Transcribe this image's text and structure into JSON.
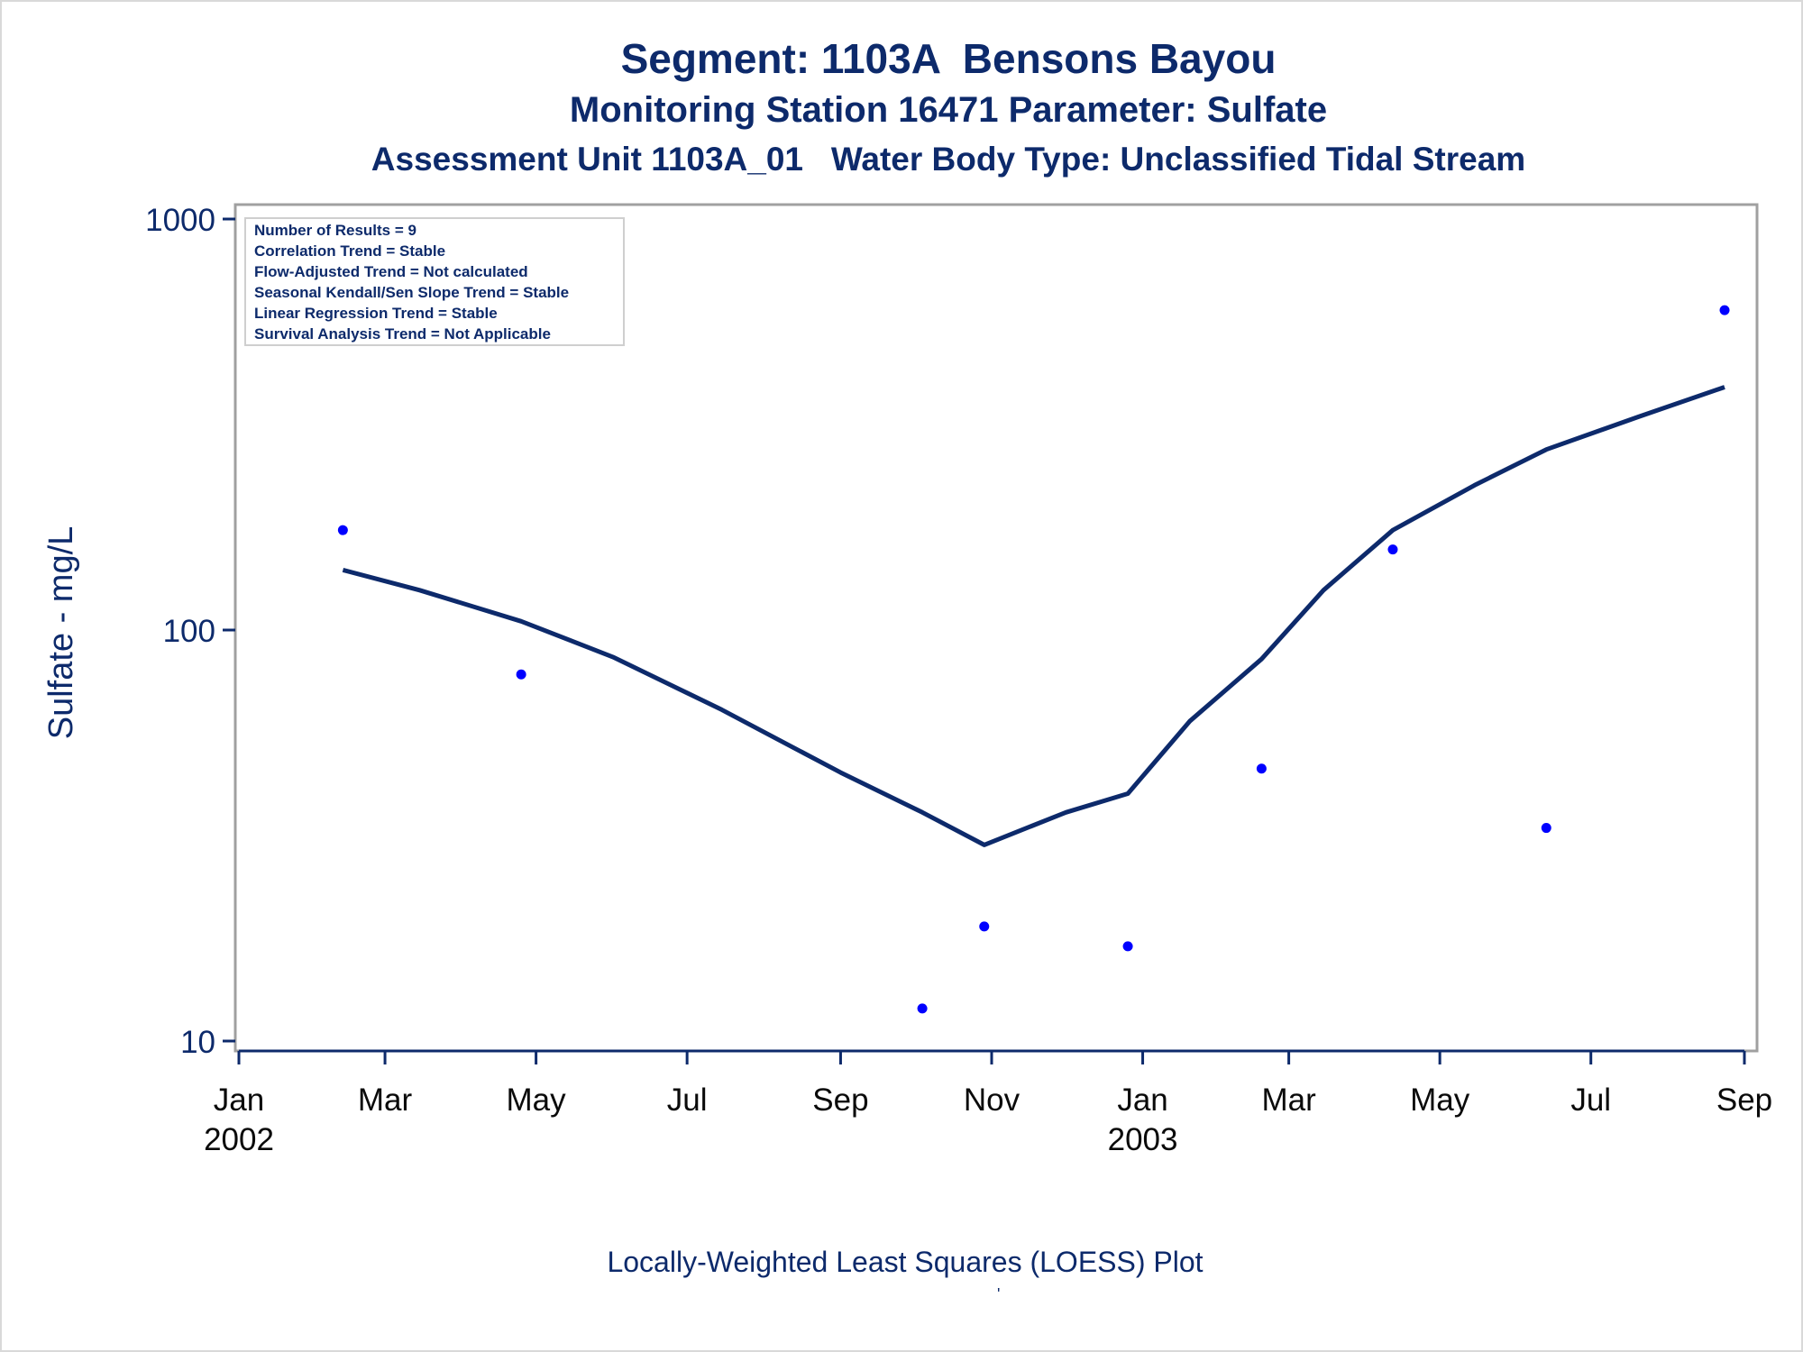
{
  "title_line1": "Segment: 1103A  Bensons Bayou",
  "title_line2": "Monitoring Station 16471 Parameter: Sulfate",
  "title_line3": "Assessment Unit 1103A_01   Water Body Type: Unclassified Tidal Stream",
  "stats_box": [
    "Number of Results = 9",
    "Correlation Trend = Stable",
    "Flow-Adjusted Trend = Not calculated",
    "Seasonal Kendall/Sen Slope Trend = Stable",
    "Linear Regression Trend = Stable",
    "Survival Analysis Trend = Not Applicable"
  ],
  "footnote": "Locally-Weighted Least Squares (LOESS) Plot",
  "footnote_mark": "'",
  "colors": {
    "text": "#0d2a6b",
    "points": "#0000ff",
    "loess_line": "#0d2a6b",
    "frame": "#a0a0a0"
  },
  "chart_data": {
    "type": "scatter",
    "ylabel": "Sulfate - mg/L",
    "yscale": "log",
    "ylim": [
      10,
      1000
    ],
    "yticks": [
      10,
      100,
      1000
    ],
    "xlim": [
      "2002-01-01",
      "2003-09-01"
    ],
    "xticks": [
      {
        "date": "2002-01-01",
        "label": "Jan",
        "year": "2002"
      },
      {
        "date": "2002-03-01",
        "label": "Mar",
        "year": ""
      },
      {
        "date": "2002-05-01",
        "label": "May",
        "year": ""
      },
      {
        "date": "2002-07-01",
        "label": "Jul",
        "year": ""
      },
      {
        "date": "2002-09-01",
        "label": "Sep",
        "year": ""
      },
      {
        "date": "2002-11-01",
        "label": "Nov",
        "year": ""
      },
      {
        "date": "2003-01-01",
        "label": "Jan",
        "year": "2003"
      },
      {
        "date": "2003-03-01",
        "label": "Mar",
        "year": ""
      },
      {
        "date": "2003-05-01",
        "label": "May",
        "year": ""
      },
      {
        "date": "2003-07-01",
        "label": "Jul",
        "year": ""
      },
      {
        "date": "2003-09-01",
        "label": "Sep",
        "year": ""
      }
    ],
    "points": [
      {
        "date": "2002-02-12",
        "value": 175
      },
      {
        "date": "2002-04-25",
        "value": 78
      },
      {
        "date": "2002-10-04",
        "value": 12
      },
      {
        "date": "2002-10-29",
        "value": 19
      },
      {
        "date": "2002-12-26",
        "value": 17
      },
      {
        "date": "2003-02-18",
        "value": 46
      },
      {
        "date": "2003-04-12",
        "value": 157
      },
      {
        "date": "2003-06-13",
        "value": 33
      },
      {
        "date": "2003-08-24",
        "value": 600
      }
    ],
    "loess": [
      {
        "date": "2002-02-12",
        "value": 140
      },
      {
        "date": "2002-03-15",
        "value": 125
      },
      {
        "date": "2002-04-25",
        "value": 105
      },
      {
        "date": "2002-06-01",
        "value": 86
      },
      {
        "date": "2002-07-15",
        "value": 64
      },
      {
        "date": "2002-09-01",
        "value": 45
      },
      {
        "date": "2002-10-04",
        "value": 36
      },
      {
        "date": "2002-10-29",
        "value": 30
      },
      {
        "date": "2002-12-01",
        "value": 36
      },
      {
        "date": "2002-12-26",
        "value": 40
      },
      {
        "date": "2003-01-20",
        "value": 60
      },
      {
        "date": "2003-02-18",
        "value": 85
      },
      {
        "date": "2003-03-15",
        "value": 125
      },
      {
        "date": "2003-04-12",
        "value": 175
      },
      {
        "date": "2003-05-15",
        "value": 225
      },
      {
        "date": "2003-06-13",
        "value": 275
      },
      {
        "date": "2003-07-20",
        "value": 330
      },
      {
        "date": "2003-08-24",
        "value": 390
      }
    ]
  }
}
